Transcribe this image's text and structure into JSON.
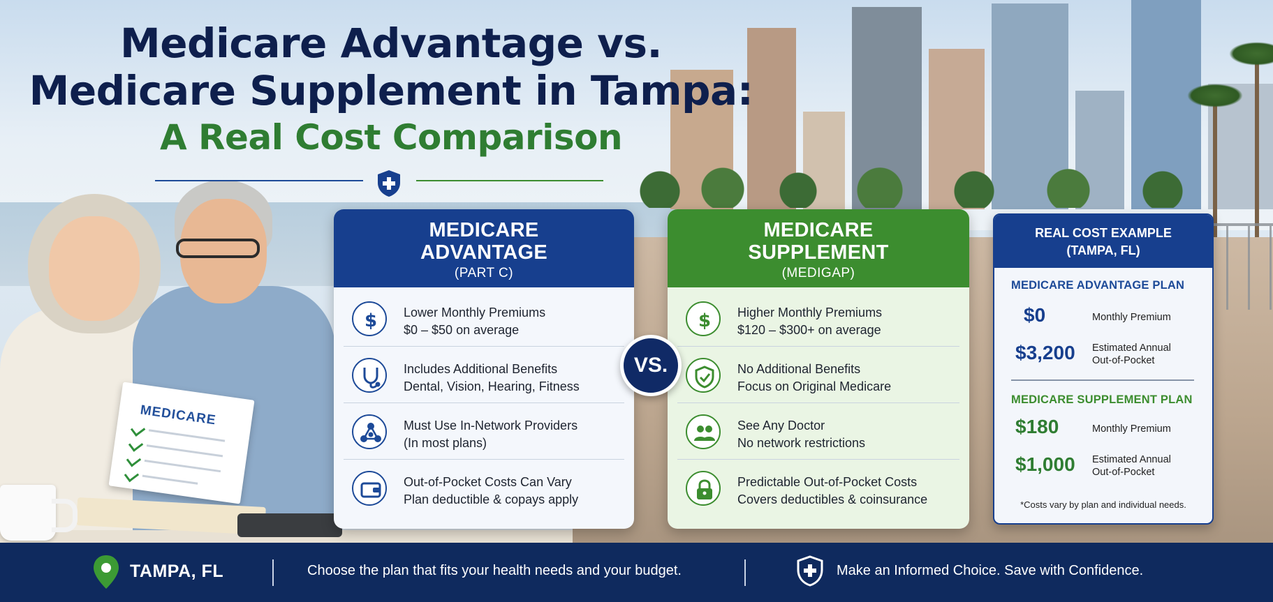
{
  "title": {
    "line1": "Medicare Advantage vs.",
    "line2": "Medicare Supplement in Tampa:",
    "subtitle": "A Real Cost Comparison"
  },
  "colors": {
    "navy": "#0e1f4d",
    "advantage_blue": "#173f8e",
    "supplement_green": "#3c8d2f",
    "footer_navy": "#0f2a5e"
  },
  "document_prop": {
    "title": "MEDICARE"
  },
  "advantage": {
    "heading_line1": "MEDICARE",
    "heading_line2": "ADVANTAGE",
    "heading_sub": "(PART C)",
    "rows": [
      {
        "icon": "dollar-icon",
        "line1": "Lower Monthly Premiums",
        "line2": "$0 – $50 on average"
      },
      {
        "icon": "stethoscope-icon",
        "line1": "Includes Additional Benefits",
        "line2": "Dental, Vision, Hearing, Fitness"
      },
      {
        "icon": "network-icon",
        "line1": "Must Use In-Network Providers",
        "line2": "(In most plans)"
      },
      {
        "icon": "wallet-icon",
        "line1": "Out-of-Pocket Costs Can Vary",
        "line2": "Plan deductible & copays apply"
      }
    ]
  },
  "vs_label": "VS.",
  "supplement": {
    "heading_line1": "MEDICARE",
    "heading_line2": "SUPPLEMENT",
    "heading_sub": "(MEDIGAP)",
    "rows": [
      {
        "icon": "dollar-icon",
        "line1": "Higher Monthly Premiums",
        "line2": "$120 – $300+ on average"
      },
      {
        "icon": "shield-check-icon",
        "line1": "No Additional Benefits",
        "line2": "Focus on Original Medicare"
      },
      {
        "icon": "people-icon",
        "line1": "See Any Doctor",
        "line2": "No network restrictions"
      },
      {
        "icon": "lock-icon",
        "line1": "Predictable Out-of-Pocket Costs",
        "line2": "Covers deductibles & coinsurance"
      }
    ]
  },
  "cost_example": {
    "heading_line1": "REAL COST EXAMPLE",
    "heading_line2": "(TAMPA, FL)",
    "advantage": {
      "label": "MEDICARE ADVANTAGE PLAN",
      "premium_value": "$0",
      "premium_label": "Monthly Premium",
      "oop_value": "$3,200",
      "oop_label_line1": "Estimated Annual",
      "oop_label_line2": "Out-of-Pocket"
    },
    "supplement": {
      "label": "MEDICARE SUPPLEMENT PLAN",
      "premium_value": "$180",
      "premium_label": "Monthly Premium",
      "oop_value": "$1,000",
      "oop_label_line1": "Estimated Annual",
      "oop_label_line2": "Out-of-Pocket"
    },
    "note": "*Costs vary by plan and individual needs."
  },
  "footer": {
    "location": "TAMPA, FL",
    "tagline": "Choose the plan that fits your health needs and your budget.",
    "cta": "Make an Informed Choice. Save with Confidence."
  }
}
